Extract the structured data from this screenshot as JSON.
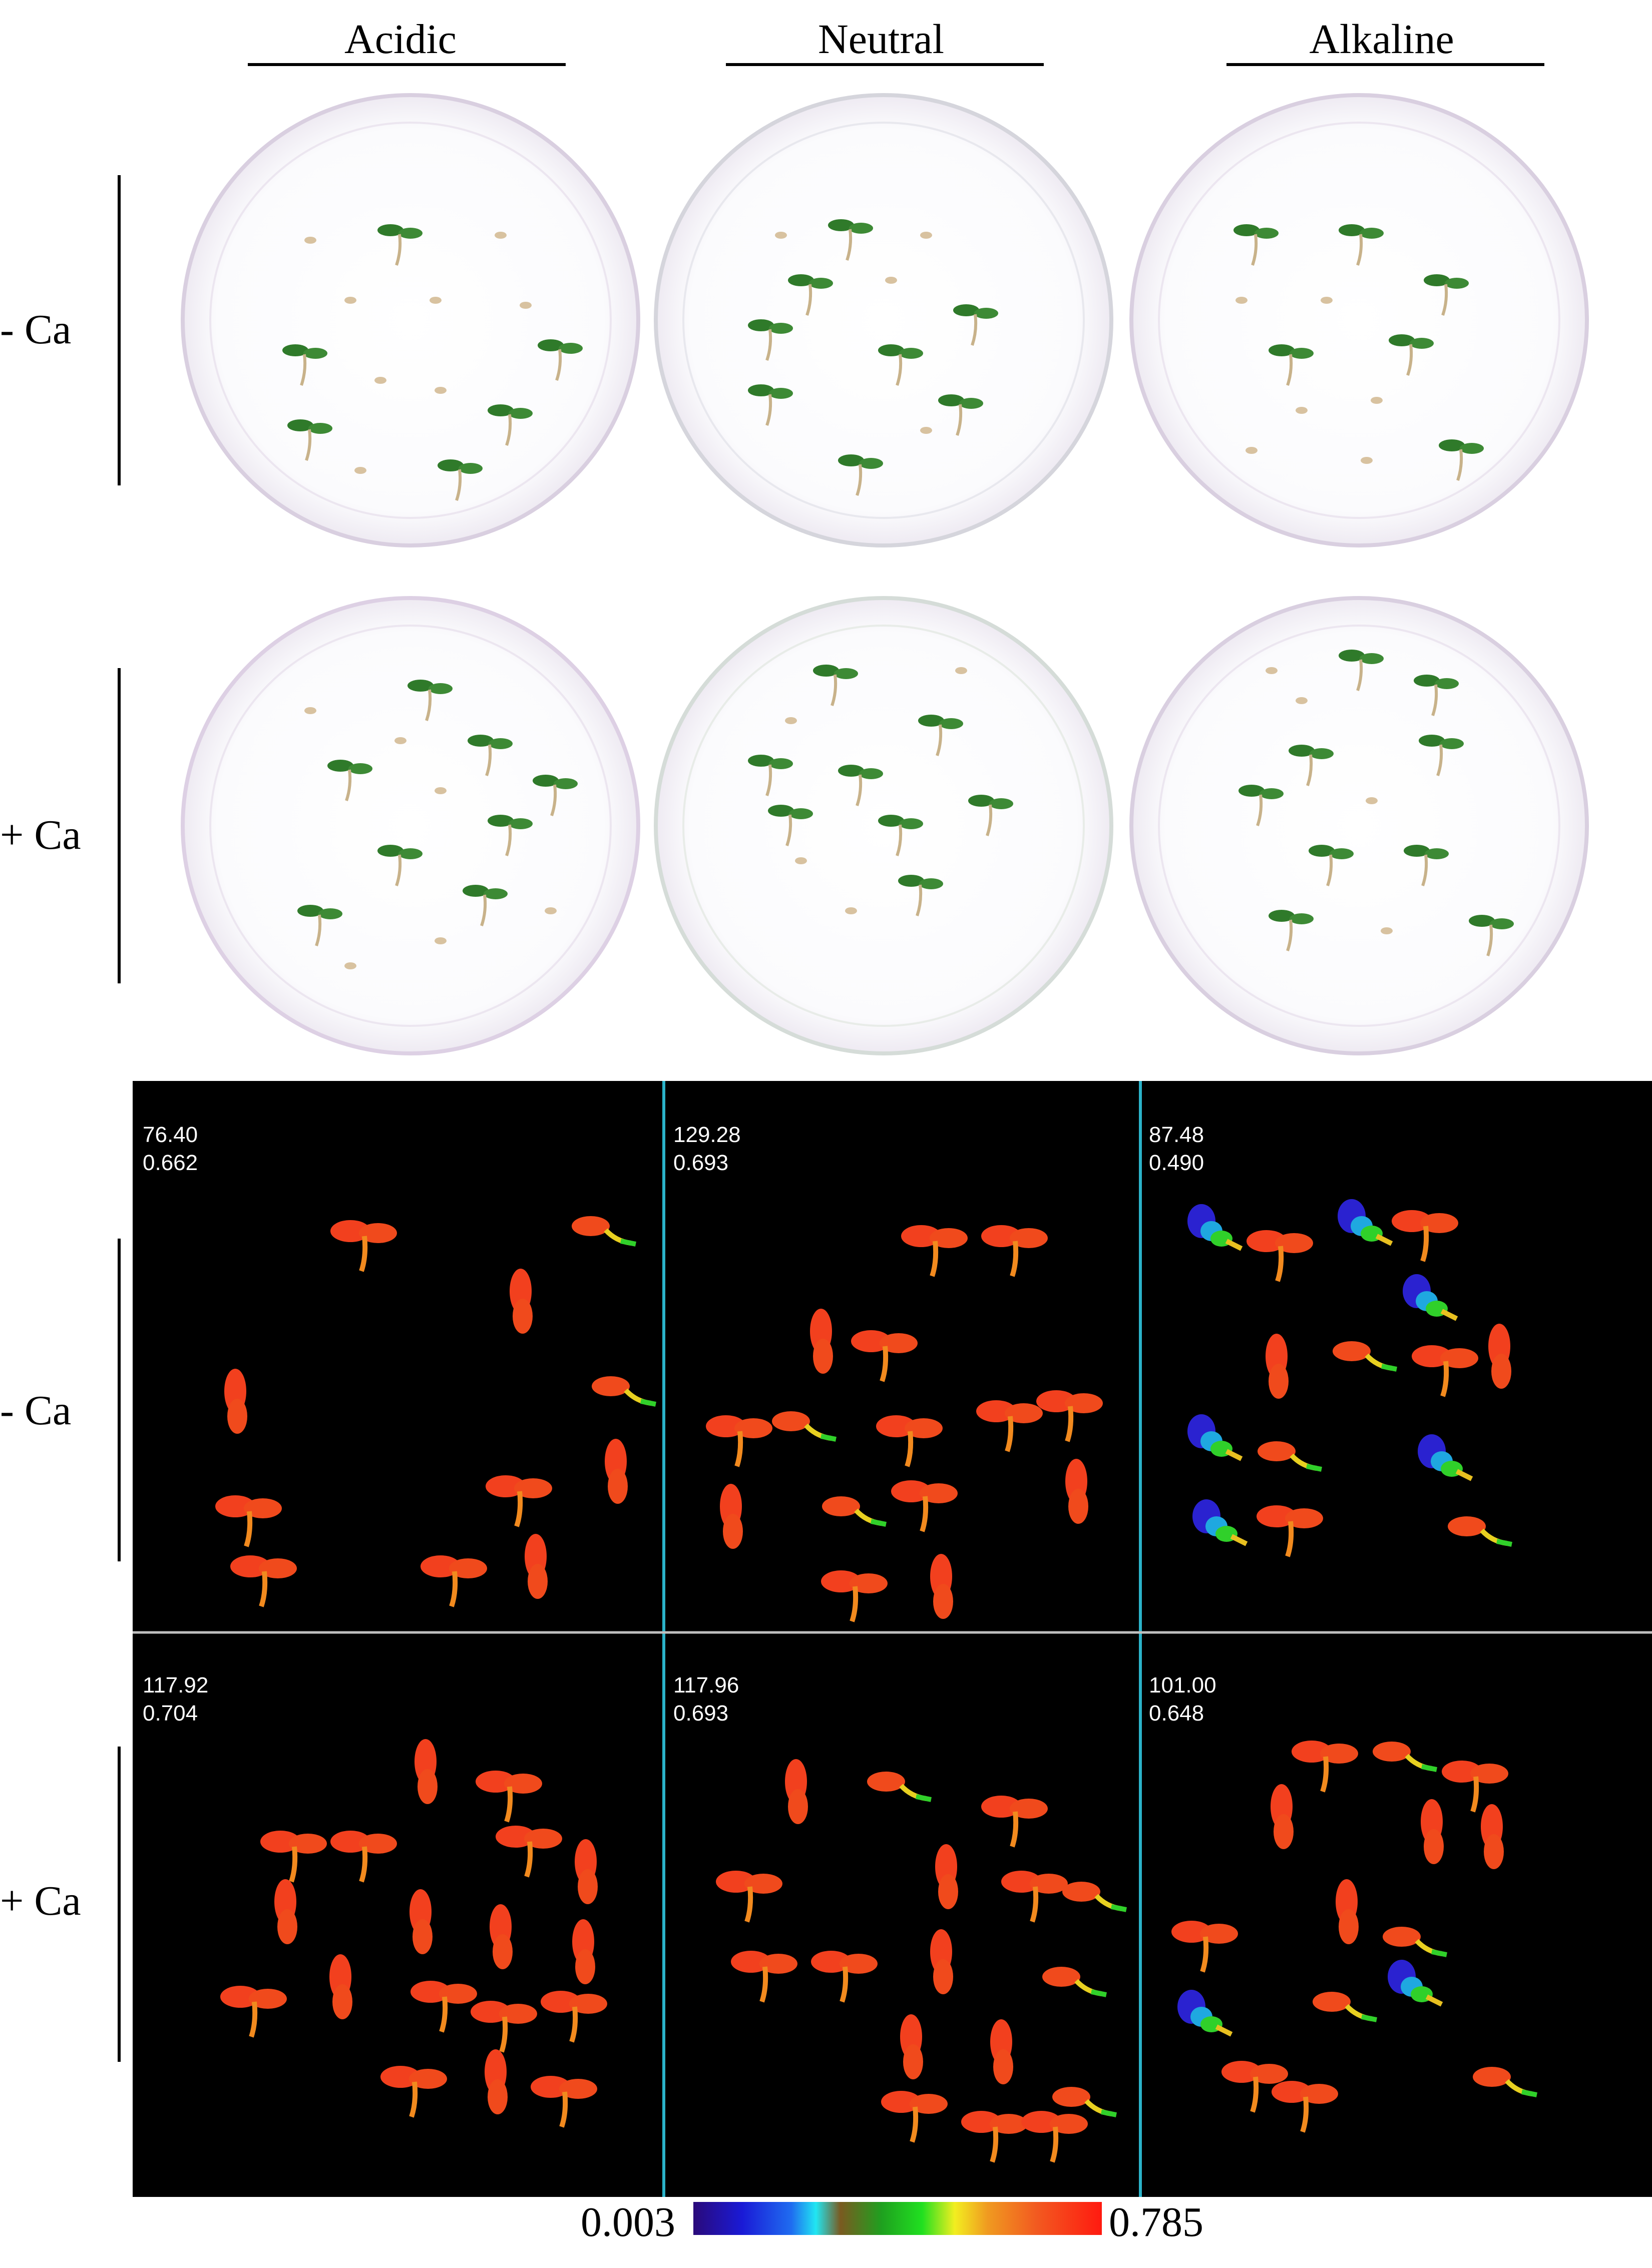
{
  "columns": [
    "Acidic",
    "Neutral",
    "Alkaline"
  ],
  "rows": [
    "- Ca",
    "+ Ca"
  ],
  "panels": {
    "minus_ca": [
      {
        "v1": "76.40",
        "v2": "0.662"
      },
      {
        "v1": "129.28",
        "v2": "0.693"
      },
      {
        "v1": "87.48",
        "v2": "0.490"
      }
    ],
    "plus_ca": [
      {
        "v1": "117.92",
        "v2": "0.704"
      },
      {
        "v1": "117.96",
        "v2": "0.693"
      },
      {
        "v1": "101.00",
        "v2": "0.648"
      }
    ]
  },
  "colorbar": {
    "min": "0.003",
    "max": "0.785"
  },
  "colors": {
    "background": "#000000",
    "divider_blue": "#2bb3c9",
    "divider_gray": "#bfbfbf",
    "seedling_red": "#f2401e",
    "seedling_green": "#2f7a2a"
  }
}
